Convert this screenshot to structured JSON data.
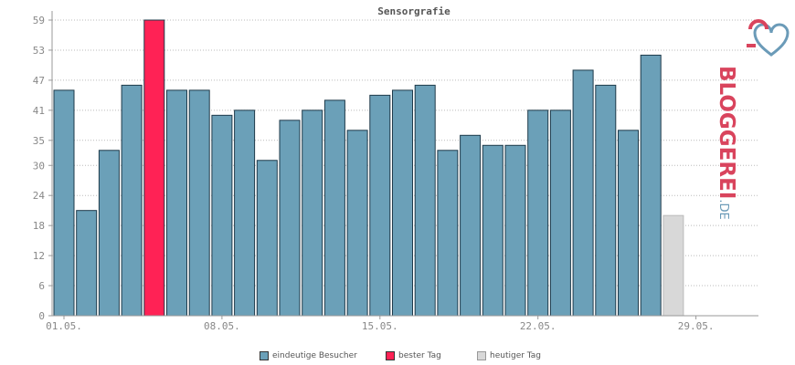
{
  "chart_data": {
    "type": "bar",
    "title": "Sensorgrafie",
    "y_ticks": [
      0,
      6,
      12,
      18,
      24,
      30,
      35,
      41,
      47,
      53,
      59
    ],
    "ylim": [
      0,
      59
    ],
    "x_tick_labels": [
      {
        "label": "01.05.",
        "day": 1
      },
      {
        "label": "08.05.",
        "day": 8
      },
      {
        "label": "15.05.",
        "day": 15
      },
      {
        "label": "22.05.",
        "day": 22
      },
      {
        "label": "29.05.",
        "day": 29
      }
    ],
    "days": [
      1,
      2,
      3,
      4,
      5,
      6,
      7,
      8,
      9,
      10,
      11,
      12,
      13,
      14,
      15,
      16,
      17,
      18,
      19,
      20,
      21,
      22,
      23,
      24,
      25,
      26,
      27,
      28
    ],
    "values": [
      45,
      21,
      33,
      46,
      59,
      45,
      45,
      40,
      41,
      31,
      39,
      41,
      43,
      37,
      44,
      45,
      46,
      33,
      36,
      34,
      34,
      41,
      41,
      49,
      46,
      37,
      52,
      20
    ],
    "bar_types": [
      "normal",
      "normal",
      "normal",
      "normal",
      "best",
      "normal",
      "normal",
      "normal",
      "normal",
      "normal",
      "normal",
      "normal",
      "normal",
      "normal",
      "normal",
      "normal",
      "normal",
      "normal",
      "normal",
      "normal",
      "normal",
      "normal",
      "normal",
      "normal",
      "normal",
      "normal",
      "normal",
      "today"
    ],
    "grid": true,
    "legend_position": "bottom-center",
    "series": [
      {
        "name": "eindeutige Besucher",
        "type": "normal",
        "color": "#6ba0b8"
      },
      {
        "name": "bester Tag",
        "type": "best",
        "color": "#ff2255"
      },
      {
        "name": "heutiger Tag",
        "type": "today",
        "color": "#d8d8d8"
      }
    ]
  },
  "logo": {
    "text": "BLOGGEREI",
    "suffix": ".DE",
    "primary_color": "#d9445d",
    "secondary_color": "#6b9bb8",
    "icon": "heart-logo-icon"
  }
}
